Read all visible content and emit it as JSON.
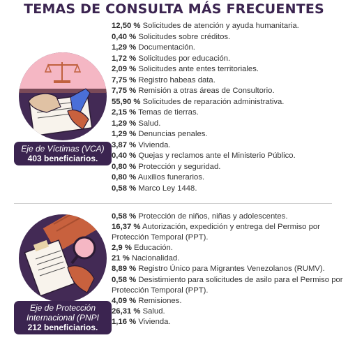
{
  "title": "TEMAS DE CONSULTA MÁS FRECUENTES",
  "victimas": {
    "badge_name": "Eje de Víctimas (VCA)",
    "badge_count": "403 beneficiarios.",
    "items": [
      {
        "pct": "12,50 %",
        "text": "Solicitudes de atención y ayuda humanitaria."
      },
      {
        "pct": "0,40 %",
        "text": "Solicitudes sobre créditos."
      },
      {
        "pct": "1,29 %",
        "text": "Documentación."
      },
      {
        "pct": "1,72 %",
        "text": "Solicitudes por educación."
      },
      {
        "pct": "2,09 %",
        "text": "Solicitudes ante entes territoriales."
      },
      {
        "pct": "7,75 %",
        "text": "Registro habeas data."
      },
      {
        "pct": "7,75 %",
        "text": "Remisión a otras áreas de Consultorio."
      },
      {
        "pct": "55,90 %",
        "text": "Solicitudes de reparación administrativa."
      },
      {
        "pct": "2,15 %",
        "text": "Temas de tierras."
      },
      {
        "pct": "1,29 %",
        "text": "Salud."
      },
      {
        "pct": "1,29 %",
        "text": "Denuncias penales."
      },
      {
        "pct": "3,87 %",
        "text": "Vivienda."
      },
      {
        "pct": "0,40 %",
        "text": "Quejas y reclamos ante el Ministerio Público."
      },
      {
        "pct": "0,80 %",
        "text": "Protección y seguridad."
      },
      {
        "pct": "0,80 %",
        "text": "Auxilios funerarios."
      },
      {
        "pct": "0,58 %",
        "text": "Marco Ley 1448."
      }
    ]
  },
  "proteccion": {
    "badge_name": "Eje de Protección Internacional (PNPI",
    "badge_count": "212 beneficiarios.",
    "items": [
      {
        "pct": "0,58 %",
        "text": "Protección de niños, niñas y adolescentes."
      },
      {
        "pct": "16,37 %",
        "text": "Autorización, expedición y entrega del Permiso por Protección Temporal (PPT)."
      },
      {
        "pct": "2,9 %",
        "text": "Educación."
      },
      {
        "pct": "21 %",
        "text": "Nacionalidad."
      },
      {
        "pct": "8,89 %",
        "text": "Registro Único para Migrantes Venezolanos (RUMV)."
      },
      {
        "pct": "0,58 %",
        "text": "Desistimiento para solicitudes de asilo para el Permiso por Protección Temporal (PPT)."
      },
      {
        "pct": "4,09 %",
        "text": "Remisiones."
      },
      {
        "pct": "26,31 %",
        "text": "Salud."
      },
      {
        "pct": "1,16 %",
        "text": "Vivienda."
      }
    ]
  },
  "colors": {
    "title": "#3b2450",
    "badge": "#3b2450",
    "circle": "#432a55",
    "accent_pink": "#f5b7c4",
    "hand": "#c8613e"
  }
}
